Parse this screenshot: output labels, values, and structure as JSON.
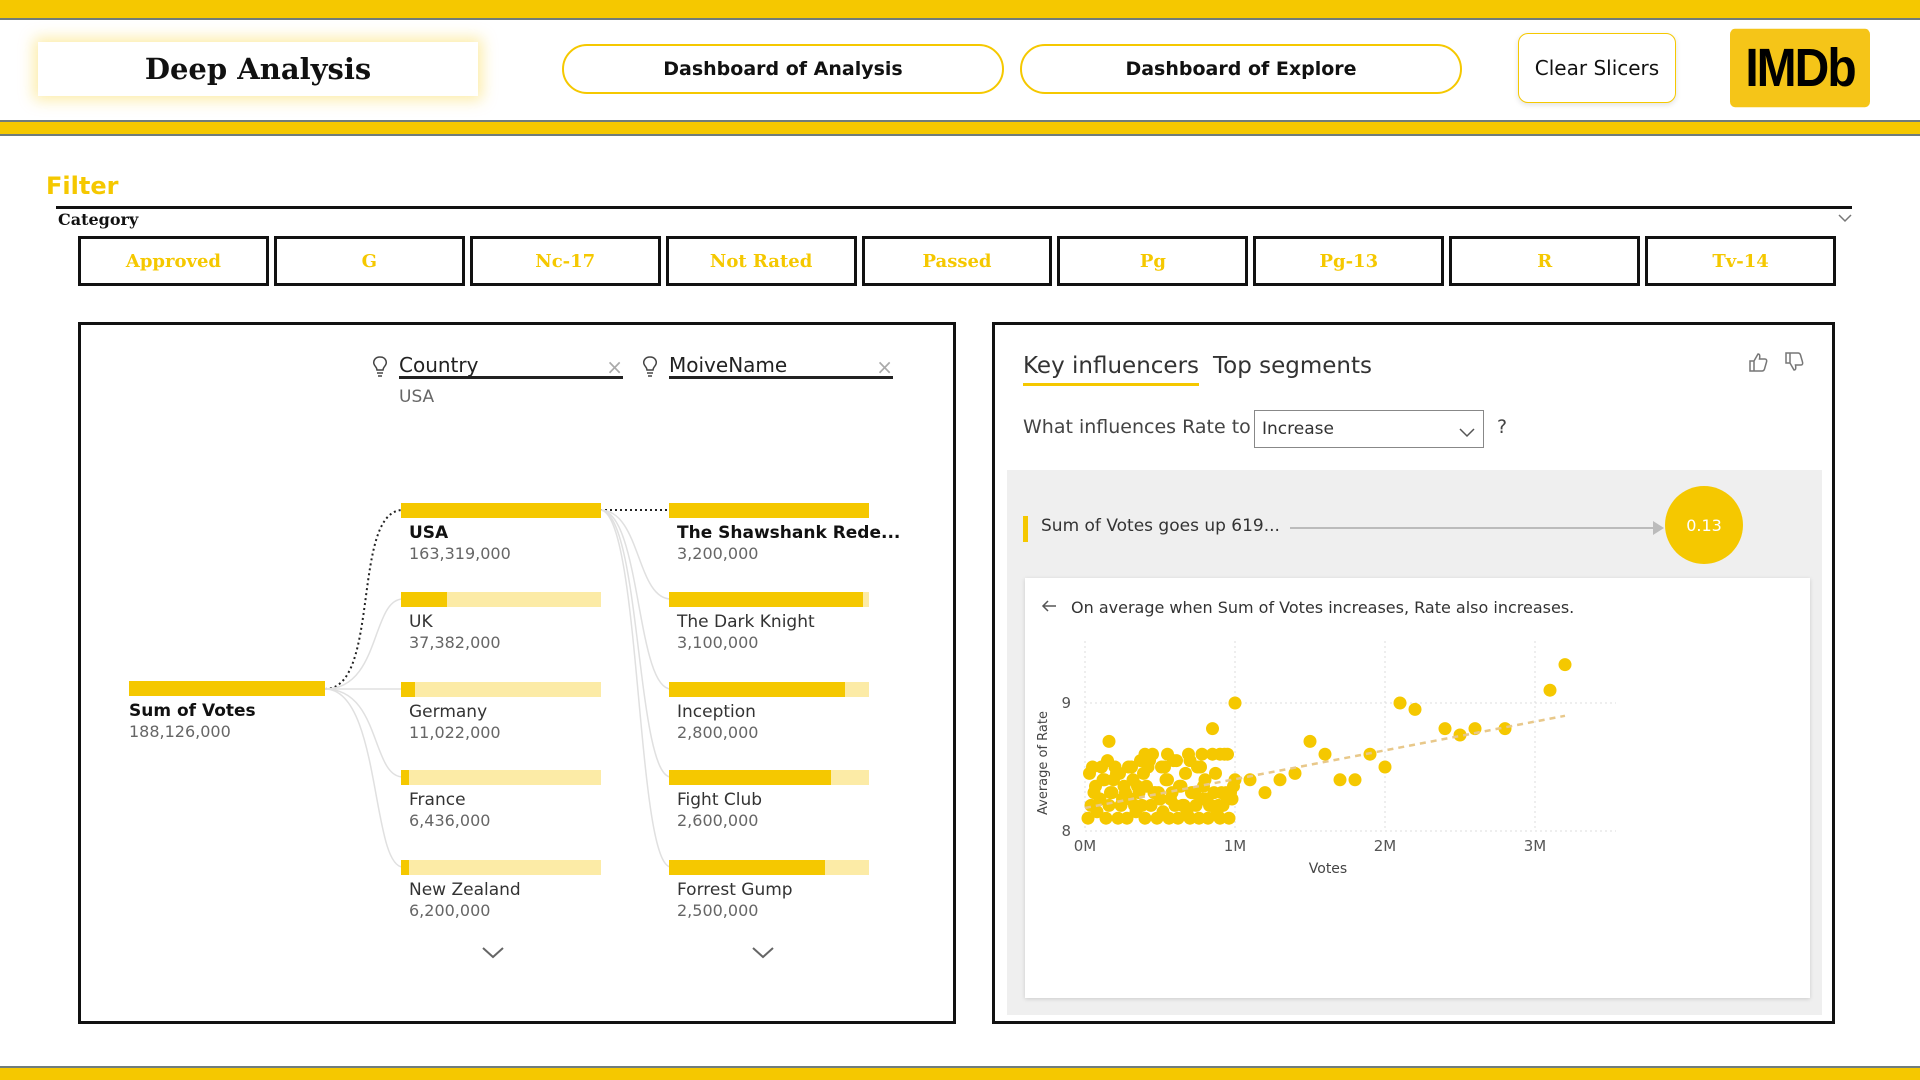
{
  "header": {
    "title": "Deep Analysis",
    "nav": [
      "Dashboard of Analysis",
      "Dashboard of Explore"
    ],
    "clear_slicers": "Clear Slicers",
    "logo": "IMDb"
  },
  "filter": {
    "title": "Filter",
    "category_label": "Category",
    "categories": [
      "Approved",
      "G",
      "Nc-17",
      "Not Rated",
      "Passed",
      "Pg",
      "Pg-13",
      "R",
      "Tv-14"
    ]
  },
  "decomposition": {
    "fields": [
      {
        "name": "Country",
        "selected": "USA"
      },
      {
        "name": "MoiveName",
        "selected": ""
      }
    ],
    "root": {
      "label": "Sum of Votes",
      "value": "188,126,000",
      "fraction": 1.0
    },
    "countries": [
      {
        "label": "USA",
        "value": "163,319,000",
        "fraction": 1.0
      },
      {
        "label": "UK",
        "value": "37,382,000",
        "fraction": 0.23
      },
      {
        "label": "Germany",
        "value": "11,022,000",
        "fraction": 0.07
      },
      {
        "label": "France",
        "value": "6,436,000",
        "fraction": 0.04
      },
      {
        "label": "New Zealand",
        "value": "6,200,000",
        "fraction": 0.04
      }
    ],
    "movies": [
      {
        "label": "The Shawshank Rede...",
        "value": "3,200,000",
        "fraction": 1.0
      },
      {
        "label": "The Dark Knight",
        "value": "3,100,000",
        "fraction": 0.97
      },
      {
        "label": "Inception",
        "value": "2,800,000",
        "fraction": 0.88
      },
      {
        "label": "Fight Club",
        "value": "2,600,000",
        "fraction": 0.81
      },
      {
        "label": "Forrest Gump",
        "value": "2,500,000",
        "fraction": 0.78
      }
    ]
  },
  "key_influencers": {
    "tabs": [
      "Key influencers",
      "Top segments"
    ],
    "question": "What influences Rate to",
    "select_value": "Increase",
    "help": "?",
    "influencer_text": "Sum of Votes goes up 619...",
    "influencer_value": "0.13",
    "card_text": "On average when Sum of Votes increases, Rate also increases.",
    "colors": {
      "accent": "#F5C800",
      "light": "#FCEBA6"
    }
  },
  "chart_data": {
    "type": "scatter",
    "xlabel": "Votes",
    "ylabel": "Average of Rate",
    "xticks": [
      "0M",
      "1M",
      "2M",
      "3M"
    ],
    "yticks": [
      "8",
      "9"
    ],
    "xlim": [
      0,
      3500000
    ],
    "ylim": [
      8,
      9.4
    ],
    "trendline": {
      "x": [
        0,
        3200000
      ],
      "y": [
        8.18,
        8.9
      ]
    },
    "points": {
      "x": [
        20000,
        40000,
        60000,
        80000,
        100000,
        120000,
        140000,
        160000,
        180000,
        200000,
        220000,
        240000,
        260000,
        280000,
        300000,
        320000,
        340000,
        360000,
        380000,
        400000,
        420000,
        440000,
        460000,
        480000,
        500000,
        520000,
        540000,
        560000,
        580000,
        600000,
        620000,
        640000,
        660000,
        680000,
        700000,
        720000,
        740000,
        760000,
        780000,
        800000,
        820000,
        840000,
        860000,
        880000,
        900000,
        920000,
        940000,
        960000,
        980000,
        1000000,
        30000,
        70000,
        110000,
        150000,
        190000,
        230000,
        270000,
        310000,
        350000,
        390000,
        430000,
        470000,
        510000,
        550000,
        590000,
        630000,
        670000,
        710000,
        750000,
        790000,
        830000,
        870000,
        910000,
        950000,
        990000,
        50000,
        130000,
        210000,
        290000,
        370000,
        450000,
        530000,
        610000,
        690000,
        770000,
        850000,
        930000,
        170000,
        250000,
        330000,
        410000,
        490000,
        570000,
        650000,
        730000,
        810000,
        890000,
        970000,
        160000,
        400000,
        550000,
        700000,
        780000,
        850000,
        900000,
        950000,
        1000000,
        1100000,
        1200000,
        1300000,
        1400000,
        1500000,
        1600000,
        1700000,
        1800000,
        1900000,
        2000000,
        2100000,
        2200000,
        2400000,
        2500000,
        2600000,
        2800000,
        3100000,
        3200000
      ],
      "y": [
        8.1,
        8.2,
        8.3,
        8.15,
        8.25,
        8.4,
        8.1,
        8.2,
        8.3,
        8.5,
        8.1,
        8.2,
        8.35,
        8.1,
        8.25,
        8.4,
        8.15,
        8.3,
        8.2,
        8.1,
        8.5,
        8.2,
        8.3,
        8.1,
        8.25,
        8.15,
        8.4,
        8.1,
        8.3,
        8.2,
        8.1,
        8.35,
        8.2,
        8.15,
        8.1,
        8.3,
        8.2,
        8.1,
        8.25,
        8.4,
        8.1,
        8.2,
        8.3,
        8.15,
        8.1,
        8.2,
        8.3,
        8.1,
        8.25,
        8.4,
        8.45,
        8.35,
        8.5,
        8.55,
        8.4,
        8.45,
        8.3,
        8.5,
        8.35,
        8.45,
        8.55,
        8.3,
        8.5,
        8.4,
        8.55,
        8.35,
        8.45,
        8.3,
        8.5,
        8.35,
        8.2,
        8.45,
        8.3,
        8.25,
        8.35,
        8.5,
        8.4,
        8.45,
        8.5,
        8.55,
        8.6,
        8.5,
        8.55,
        8.6,
        8.5,
        8.6,
        8.6,
        8.3,
        8.25,
        8.2,
        8.35,
        8.3,
        8.25,
        8.2,
        8.3,
        8.25,
        8.2,
        8.3,
        8.7,
        8.6,
        8.6,
        8.55,
        8.6,
        8.8,
        8.6,
        8.6,
        9.0,
        8.4,
        8.3,
        8.4,
        8.45,
        8.7,
        8.6,
        8.4,
        8.4,
        8.6,
        8.5,
        9.0,
        8.95,
        8.8,
        8.75,
        8.8,
        8.8,
        9.1,
        9.3
      ]
    }
  }
}
